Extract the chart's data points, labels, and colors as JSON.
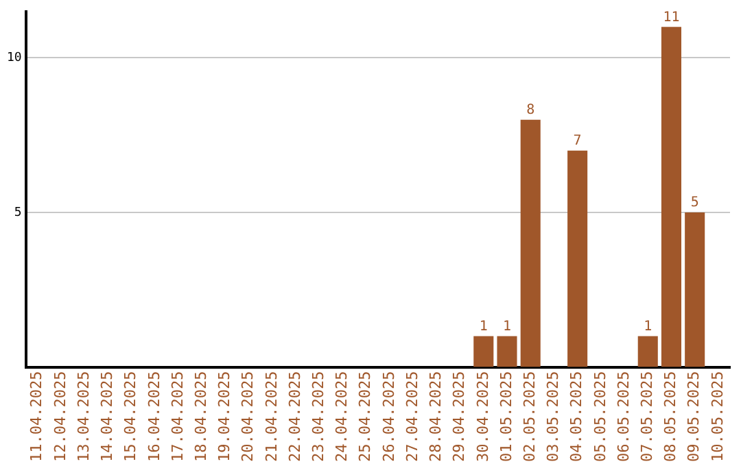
{
  "chart_data": {
    "type": "bar",
    "categories": [
      "11.04.2025",
      "12.04.2025",
      "13.04.2025",
      "14.04.2025",
      "15.04.2025",
      "16.04.2025",
      "17.04.2025",
      "18.04.2025",
      "19.04.2025",
      "20.04.2025",
      "21.04.2025",
      "22.04.2025",
      "23.04.2025",
      "24.04.2025",
      "25.04.2025",
      "26.04.2025",
      "27.04.2025",
      "28.04.2025",
      "29.04.2025",
      "30.04.2025",
      "01.05.2025",
      "02.05.2025",
      "03.05.2025",
      "04.05.2025",
      "05.05.2025",
      "06.05.2025",
      "07.05.2025",
      "08.05.2025",
      "09.05.2025",
      "10.05.2025"
    ],
    "values": [
      0,
      0,
      0,
      0,
      0,
      0,
      0,
      0,
      0,
      0,
      0,
      0,
      0,
      0,
      0,
      0,
      0,
      0,
      0,
      1,
      1,
      8,
      0,
      7,
      0,
      0,
      1,
      11,
      5,
      0
    ],
    "value_labels": [
      null,
      null,
      null,
      null,
      null,
      null,
      null,
      null,
      null,
      null,
      null,
      null,
      null,
      null,
      null,
      null,
      null,
      null,
      null,
      "1",
      "1",
      "8",
      null,
      "7",
      null,
      null,
      "1",
      "11",
      "5",
      null
    ],
    "color": "#a0572a",
    "ylim": [
      0,
      11.5
    ],
    "yticks": [
      5,
      10
    ],
    "grid": "y",
    "legend": false
  }
}
